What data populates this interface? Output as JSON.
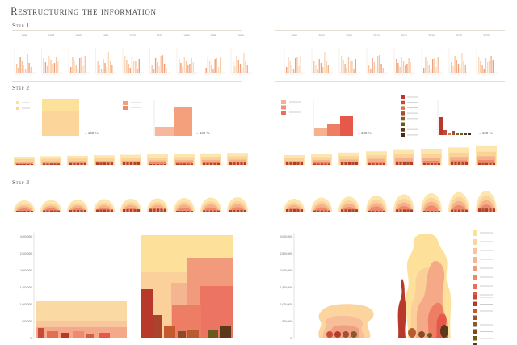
{
  "header": {
    "title": "Restructuring the information"
  },
  "steps": {
    "step1": "Step 1",
    "step2": "Step 2",
    "step3": "Step 3"
  },
  "years_left": [
    "1955",
    "1957",
    "1960",
    "1965",
    "1970",
    "1975",
    "1980",
    "1985",
    "1990"
  ],
  "years_right": [
    "1995",
    "2000",
    "2005",
    "2010",
    "2015",
    "2020",
    "2025",
    "2030"
  ],
  "percent_label": "= 100 %",
  "axis_ticks": [
    "3,000,000",
    "2,500,000",
    "2,000,000",
    "1,500,000",
    "1,000,000",
    "500,000",
    "0"
  ],
  "colors": {
    "pale_yellow": "#fde19a",
    "light_peach": "#fbd59a",
    "salmon": "#f4a07c",
    "coral": "#ee7e63",
    "red": "#e5584a",
    "dark_red": "#b8392c",
    "brown": "#8b5a2b",
    "olive": "#6b5a1e",
    "dark_brown": "#5a3a1a"
  }
}
